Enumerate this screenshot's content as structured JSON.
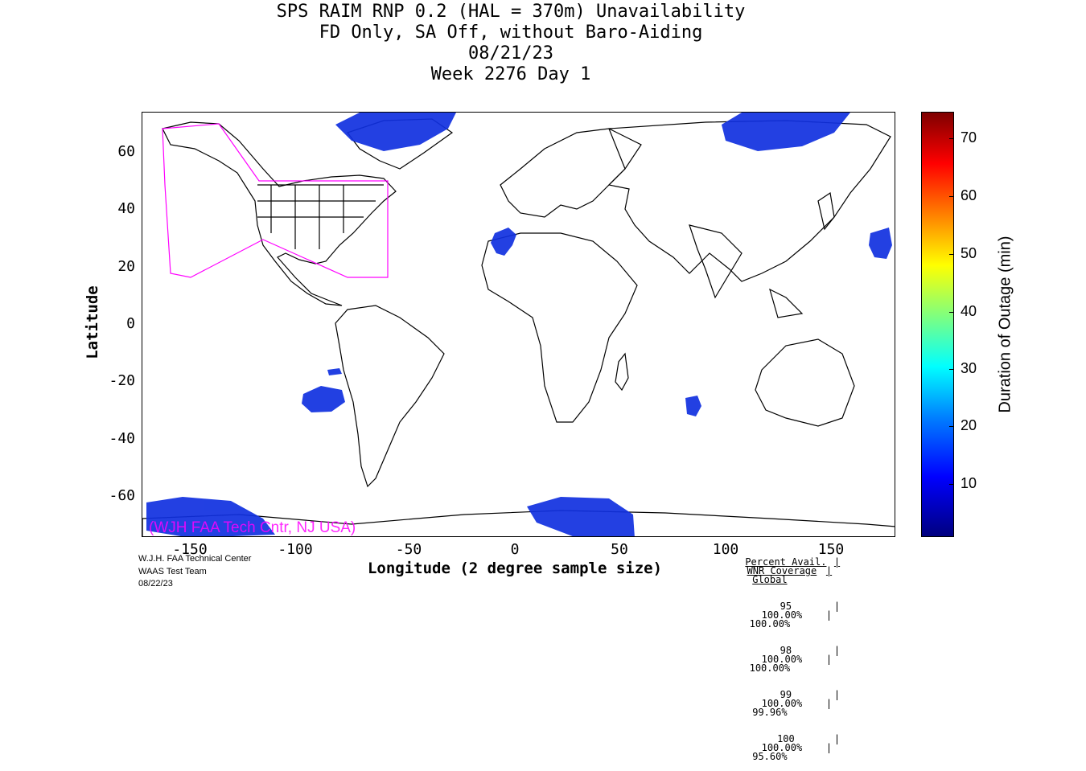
{
  "title": {
    "line1": "SPS RAIM RNP 0.2 (HAL = 370m) Unavailability",
    "line2": "FD Only, SA Off, without Baro-Aiding",
    "line3": "08/21/23",
    "line4": "Week 2276 Day 1"
  },
  "axes": {
    "xlabel": "Longitude (2 degree sample size)",
    "ylabel": "Latitude",
    "xticks": [
      "-150",
      "-100",
      "-50",
      "0",
      "50",
      "100",
      "150"
    ],
    "yticks": [
      "60",
      "40",
      "20",
      "0",
      "-20",
      "-40",
      "-60"
    ]
  },
  "colorbar": {
    "label": "Duration of Outage (min)",
    "ticks": [
      "70",
      "60",
      "50",
      "40",
      "30",
      "20",
      "10"
    ],
    "range": [
      0,
      75
    ]
  },
  "watermark": "(WJH FAA Tech Cntr, NJ USA)",
  "credits": {
    "line1": "W.J.H. FAA Technical Center",
    "line2": "WAAS Test Team",
    "line3": "08/22/23"
  },
  "stats": {
    "header_percent": "Percent Avail.",
    "header_wnr": "WNR Coverage",
    "header_global": "Global",
    "rows": [
      {
        "percent": "95",
        "wnr": "100.00%",
        "global": "100.00%"
      },
      {
        "percent": "98",
        "wnr": "100.00%",
        "global": "100.00%"
      },
      {
        "percent": "99",
        "wnr": "100.00%",
        "global": "99.96%"
      },
      {
        "percent": "100",
        "wnr": "100.00%",
        "global": "95.60%"
      }
    ]
  },
  "colors": {
    "outage": "#1030e0",
    "region_outline": "#ff00ff",
    "watermark": "#ff00ff"
  }
}
